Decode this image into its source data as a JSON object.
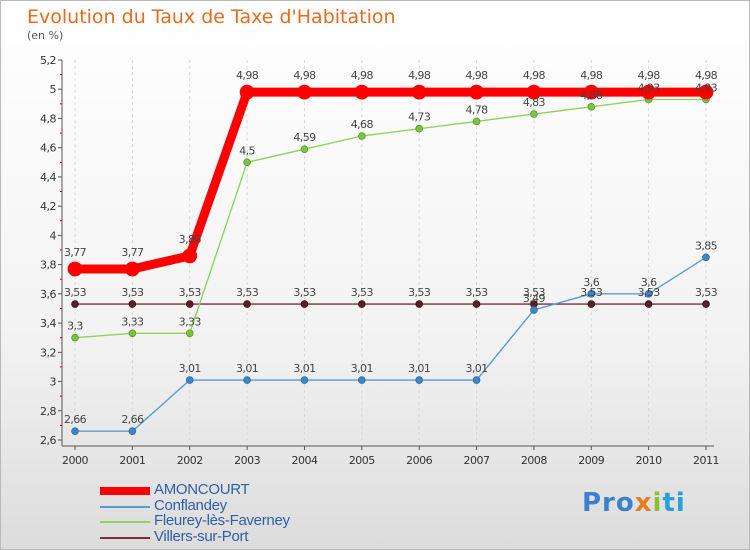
{
  "chart_data": {
    "type": "line",
    "title": "Evolution du Taux de Taxe d'Habitation",
    "subtitle": "(en %)",
    "ylim": [
      2.6,
      5.2
    ],
    "yticks": [
      2.6,
      2.8,
      3,
      3.2,
      3.4,
      3.6,
      3.8,
      4,
      4.2,
      4.4,
      4.6,
      4.8,
      5,
      5.2
    ],
    "ytick_labels": [
      "2,6",
      "2,8",
      "3",
      "3,2",
      "3,4",
      "3,6",
      "3,8",
      "4",
      "4,2",
      "4,4",
      "4,6",
      "4,8",
      "5",
      "5,2"
    ],
    "categories": [
      "2000",
      "2001",
      "2002",
      "2003",
      "2004",
      "2005",
      "2006",
      "2007",
      "2008",
      "2009",
      "2010",
      "2011"
    ],
    "series": [
      {
        "name": "AMONCOURT",
        "color": "#ff0000",
        "values": [
          3.77,
          3.77,
          3.86,
          4.98,
          4.98,
          4.98,
          4.98,
          4.98,
          4.98,
          4.98,
          4.98,
          4.98
        ],
        "labels": [
          "3,77",
          "3,77",
          "3,86",
          "4,98",
          "4,98",
          "4,98",
          "4,98",
          "4,98",
          "4,98",
          "4,98",
          "4,98",
          "4,98"
        ]
      },
      {
        "name": "Conflandey",
        "color": "#5b9bd5",
        "values": [
          2.66,
          2.66,
          3.01,
          3.01,
          3.01,
          3.01,
          3.01,
          3.01,
          3.49,
          3.6,
          3.6,
          3.85
        ],
        "labels": [
          "2,66",
          "2,66",
          "3,01",
          "3,01",
          "3,01",
          "3,01",
          "3,01",
          "3,01",
          "3,49",
          "3,6",
          "3,6",
          "3,85"
        ]
      },
      {
        "name": "Fleurey-lès-Faverney",
        "color": "#8fd45a",
        "values": [
          3.3,
          3.33,
          3.33,
          4.5,
          4.59,
          4.68,
          4.73,
          4.78,
          4.83,
          4.88,
          4.93,
          4.93
        ],
        "labels": [
          "3,3",
          "3,33",
          "3,33",
          "4,5",
          "4,59",
          "4,68",
          "4,73",
          "4,78",
          "4,83",
          "4,88",
          "4,93",
          "4,93"
        ]
      },
      {
        "name": "Villers-sur-Port",
        "color": "#7b2f3a",
        "values": [
          3.53,
          3.53,
          3.53,
          3.53,
          3.53,
          3.53,
          3.53,
          3.53,
          3.53,
          3.53,
          3.53,
          3.53
        ],
        "labels": [
          "3,53",
          "3,53",
          "3,53",
          "3,53",
          "3,53",
          "3,53",
          "3,53",
          "3,53",
          "3,53",
          "3,53",
          "3,53",
          "3,53"
        ]
      }
    ]
  },
  "logo": {
    "p1": "Pro",
    "p2": "x",
    "p3": "i",
    "p4": "ti"
  }
}
